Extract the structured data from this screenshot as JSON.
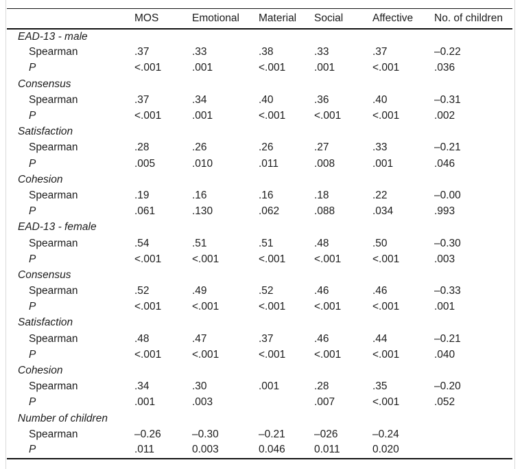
{
  "page": {
    "background": "#ffffff",
    "edge_line_color": "#d9d9d9",
    "rule_color": "#111111",
    "text_color": "#1b1b1b"
  },
  "table": {
    "columns": [
      "",
      "MOS",
      "Emotional",
      "Material",
      "Social",
      "Affective",
      "No. of children"
    ],
    "row_labels": {
      "spearman": "Spearman",
      "p": "P"
    },
    "groups": [
      {
        "label": "EAD-13 - male",
        "spearman": [
          ".37",
          ".33",
          ".38",
          ".33",
          ".37",
          "–0.22"
        ],
        "p": [
          "<.001",
          ".001",
          "<.001",
          ".001",
          "<.001",
          ".036"
        ]
      },
      {
        "label": "Consensus",
        "spearman": [
          ".37",
          ".34",
          ".40",
          ".36",
          ".40",
          "–0.31"
        ],
        "p": [
          "<.001",
          ".001",
          "<.001",
          "<.001",
          "<.001",
          ".002"
        ]
      },
      {
        "label": "Satisfaction",
        "spearman": [
          ".28",
          ".26",
          ".26",
          ".27",
          ".33",
          "–0.21"
        ],
        "p": [
          ".005",
          ".010",
          ".011",
          ".008",
          ".001",
          ".046"
        ]
      },
      {
        "label": "Cohesion",
        "spearman": [
          ".19",
          ".16",
          ".16",
          ".18",
          ".22",
          "–0.00"
        ],
        "p": [
          ".061",
          ".130",
          ".062",
          ".088",
          ".034",
          ".993"
        ]
      },
      {
        "label": "EAD-13 - female",
        "spearman": [
          ".54",
          ".51",
          ".51",
          ".48",
          ".50",
          "–0.30"
        ],
        "p": [
          "<.001",
          "<.001",
          "<.001",
          "<.001",
          "<.001",
          ".003"
        ]
      },
      {
        "label": "Consensus",
        "spearman": [
          ".52",
          ".49",
          ".52",
          ".46",
          ".46",
          "–0.33"
        ],
        "p": [
          "<.001",
          "<.001",
          "<.001",
          "<.001",
          "<.001",
          ".001"
        ]
      },
      {
        "label": "Satisfaction",
        "spearman": [
          ".48",
          ".47",
          ".37",
          ".46",
          ".44",
          "–0.21"
        ],
        "p": [
          "<.001",
          "<.001",
          "<.001",
          "<.001",
          "<.001",
          ".040"
        ]
      },
      {
        "label": "Cohesion",
        "spearman": [
          ".34",
          ".30",
          ".001",
          ".28",
          ".35",
          "–0.20"
        ],
        "p": [
          ".001",
          ".003",
          "",
          ".007",
          "<.001",
          ".052"
        ]
      },
      {
        "label": "Number of children",
        "spearman": [
          "–0.26",
          "–0.30",
          "–0.21",
          "–026",
          "–0.24",
          ""
        ],
        "p": [
          ".011",
          "0.003",
          "0.046",
          "0.011",
          "0.020",
          ""
        ]
      }
    ]
  }
}
